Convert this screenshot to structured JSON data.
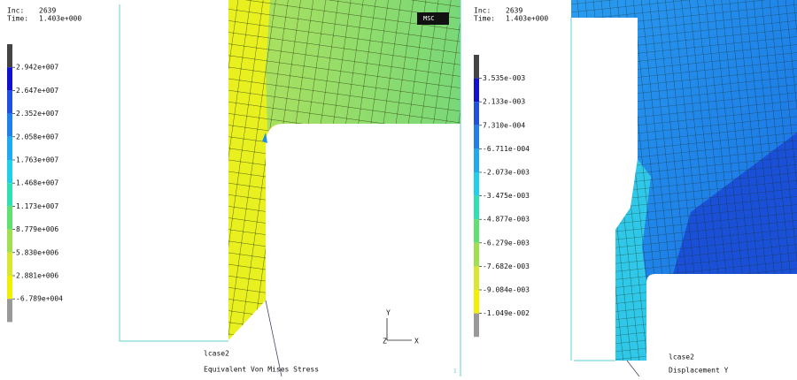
{
  "panels": [
    {
      "inc_label": "Inc:",
      "inc": "2639",
      "time_label": "Time:",
      "time": "1.403e+000",
      "legend": [
        "2.942e+007",
        "2.647e+007",
        "2.352e+007",
        "2.058e+007",
        "1.763e+007",
        "1.468e+007",
        "1.173e+007",
        "8.779e+006",
        "5.830e+006",
        "2.881e+006",
        "-6.789e+004"
      ],
      "case": "lcase2",
      "result": "Equivalent Von Mises Stress",
      "logo": "MSC",
      "axes": [
        "Y",
        "Z",
        "X"
      ],
      "corner": "1"
    },
    {
      "inc_label": "Inc:",
      "inc": "2639",
      "time_label": "Time:",
      "time": "1.403e+000",
      "legend": [
        "3.535e-003",
        "2.133e-003",
        "7.310e-004",
        "-6.711e-004",
        "-2.073e-003",
        "-3.475e-003",
        "-4.877e-003",
        "-6.279e-003",
        "-7.682e-003",
        "-9.084e-003",
        "-1.049e-002"
      ],
      "case": "lcase2",
      "result": "Displacement Y"
    }
  ]
}
